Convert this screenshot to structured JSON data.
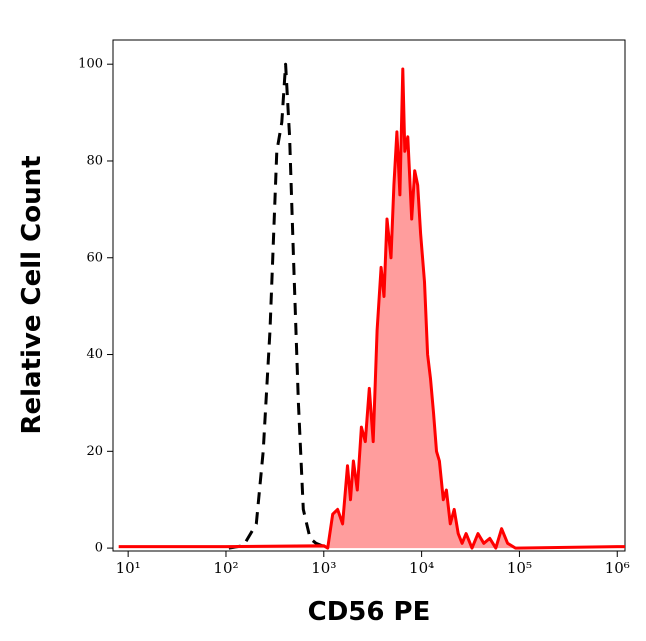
{
  "chart_data": {
    "type": "histogram-overlay",
    "x_label": "CD56 PE",
    "y_label": "Relative Cell Count",
    "xscale": "log",
    "xlim": [
      7,
      1200000
    ],
    "xticks": [
      {
        "value": 10,
        "label": "10¹"
      },
      {
        "value": 100,
        "label": "10²"
      },
      {
        "value": 1000,
        "label": "10³"
      },
      {
        "value": 10000,
        "label": "10⁴"
      },
      {
        "value": 100000,
        "label": "10⁵"
      },
      {
        "value": 1000000,
        "label": "10⁶"
      }
    ],
    "ylim": [
      -0.6,
      105
    ],
    "yticks": [
      0,
      20,
      40,
      60,
      80,
      100
    ],
    "series": [
      {
        "color": "#000000",
        "dashed": true,
        "filled": false,
        "x": [
          107,
          151,
          204,
          240,
          282,
          331,
          372,
          407,
          447,
          490,
          550,
          617,
          724,
          832,
          1096
        ],
        "values": [
          0,
          0.5,
          5,
          20,
          45,
          82,
          88,
          100,
          85,
          60,
          30,
          8,
          2,
          1,
          0
        ]
      },
      {
        "color": "#ff0000",
        "fill": "#ff9d9d",
        "dashed": false,
        "filled": true,
        "x": [
          8,
          100,
          1000,
          1097,
          1233,
          1384,
          1556,
          1746,
          1875,
          2009,
          2203,
          2421,
          2655,
          2917,
          3199,
          3508,
          3855,
          4130,
          4426,
          4864,
          5212,
          5585,
          5998,
          6427,
          6730,
          7228,
          7925,
          8492,
          9120,
          9772,
          10715,
          11508,
          12331,
          13213,
          14191,
          15205,
          16672,
          17906,
          19634,
          21528,
          23659,
          25942,
          28510,
          32734,
          37670,
          43251,
          49774,
          57280,
          65766,
          75683,
          91201,
          1000000,
          1200000
        ],
        "values": [
          0.3,
          0.3,
          0.5,
          0,
          7,
          8,
          5,
          17,
          10,
          18,
          12,
          25,
          22,
          33,
          22,
          45,
          58,
          52,
          68,
          60,
          75,
          86,
          73,
          99,
          82,
          85,
          68,
          78,
          75,
          65,
          55,
          40,
          35,
          28,
          20,
          18,
          10,
          12,
          5,
          8,
          3,
          1,
          3,
          0,
          3,
          1,
          2,
          0,
          4,
          1,
          0,
          0.3,
          0.3
        ]
      }
    ]
  }
}
